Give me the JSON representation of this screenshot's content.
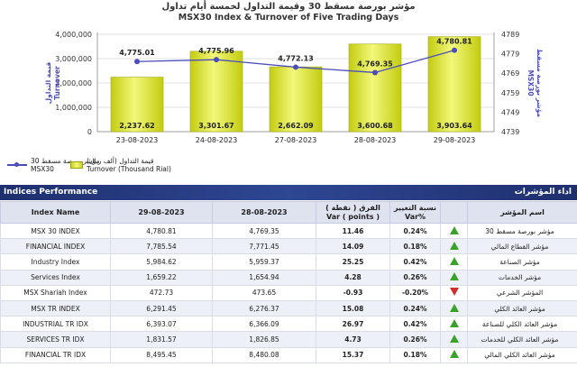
{
  "chart_data": {
    "type": "bar+line",
    "title_ar": "مؤشر بورصة مسقط 30 وقيمة التداول لخمسة أيام تداول",
    "title": "MSX30 Index & Turnover of Five Trading Days",
    "categories": [
      "23-08-2023",
      "24-08-2023",
      "27-08-2023",
      "28-08-2023",
      "29-08-2023"
    ],
    "series": [
      {
        "name": "Turnover (Thousand Rial)",
        "name_ar": "قيمة التداول (ألف ريال)",
        "type": "bar",
        "axis": "left",
        "values": [
          2237.62,
          3301.67,
          2662.09,
          3600.68,
          3903.64
        ],
        "labels": [
          "2,237.62",
          "3,301.67",
          "2,662.09",
          "3,600.68",
          "3,903.64"
        ],
        "plot_values": [
          2237620,
          3301670,
          2662090,
          3600680,
          3903640
        ]
      },
      {
        "name": "MSX30",
        "name_ar": "مؤشر بورصة مسقط 30",
        "type": "line",
        "axis": "right",
        "values": [
          4775.01,
          4775.96,
          4772.13,
          4769.35,
          4780.81
        ],
        "labels": [
          "4,775.01",
          "4,775.96",
          "4,772.13",
          "4,769.35",
          "4,780.81"
        ]
      }
    ],
    "left_axis": {
      "ticks": [
        "0",
        "1,000,000",
        "2,000,000",
        "3,000,000",
        "4,000,000"
      ],
      "tick_values": [
        0,
        1000000,
        2000000,
        3000000,
        4000000
      ],
      "range": [
        0,
        4000000
      ],
      "label_ar": "قيمة التداول",
      "label": "Turnover"
    },
    "right_axis": {
      "ticks": [
        "4739",
        "4749",
        "4759",
        "4769",
        "4779",
        "4789"
      ],
      "tick_values": [
        4739,
        4749,
        4759,
        4769,
        4779,
        4789
      ],
      "range": [
        4739,
        4789
      ],
      "label_ar": "مؤشر بورصة مسقط",
      "label": "MSX30"
    },
    "colors": {
      "bar": "#d9e032",
      "bar_edge": "#a3a815",
      "line": "#4b4dbd"
    }
  },
  "legend": {
    "line_label_ar": "مؤشر بورصة مسقط 30",
    "line_label": "MSX30",
    "bar_label_ar": "قيمة التداول (ألف ريال)",
    "bar_label": "Turnover (Thousand Rial)"
  },
  "section": {
    "title": "Indices Performance",
    "title_ar": "اداء المؤشرات"
  },
  "table": {
    "headers": {
      "name": "Index Name",
      "d1": "29-08-2023",
      "d2": "28-08-2023",
      "var_ar": "الفرق ( نقطة )",
      "var": "Var ( points )",
      "pct_ar": "نسبة التغيير",
      "pct": "Var%",
      "name_ar": "اسم المؤشر"
    },
    "rows": [
      {
        "name": "MSX 30 INDEX",
        "d1": "4,780.81",
        "d2": "4,769.35",
        "var": "11.46",
        "pct": "0.24%",
        "dir": "up",
        "name_ar": "مؤشر بورصة مسقط 30"
      },
      {
        "name": "FINANCIAL INDEX",
        "d1": "7,785.54",
        "d2": "7,771.45",
        "var": "14.09",
        "pct": "0.18%",
        "dir": "up",
        "name_ar": "مؤشر القطاع المالي"
      },
      {
        "name": "Industry Index",
        "d1": "5,984.62",
        "d2": "5,959.37",
        "var": "25.25",
        "pct": "0.42%",
        "dir": "up",
        "name_ar": "مؤشر الصناعة"
      },
      {
        "name": "Services Index",
        "d1": "1,659.22",
        "d2": "1,654.94",
        "var": "4.28",
        "pct": "0.26%",
        "dir": "up",
        "name_ar": "مؤشر الخدمات"
      },
      {
        "name": "MSX Shariah Index",
        "d1": "472.73",
        "d2": "473.65",
        "var": "-0.93",
        "pct": "-0.20%",
        "dir": "down",
        "name_ar": "المؤشر الشرعي"
      },
      {
        "name": "MSX TR INDEX",
        "d1": "6,291.45",
        "d2": "6,276.37",
        "var": "15.08",
        "pct": "0.24%",
        "dir": "up",
        "name_ar": "مؤشر العائد الكلي"
      },
      {
        "name": "INDUSTRIAL TR IDX",
        "d1": "6,393.07",
        "d2": "6,366.09",
        "var": "26.97",
        "pct": "0.42%",
        "dir": "up",
        "name_ar": "مؤشر العائد الكلي للصناعة"
      },
      {
        "name": "SERVICES TR IDX",
        "d1": "1,831.57",
        "d2": "1,826.85",
        "var": "4.73",
        "pct": "0.26%",
        "dir": "up",
        "name_ar": "مؤشر العائد الكلي للخدمات"
      },
      {
        "name": "FINANCIAL TR IDX",
        "d1": "8,495.45",
        "d2": "8,480.08",
        "var": "15.37",
        "pct": "0.18%",
        "dir": "up",
        "name_ar": "مؤشر العائد الكلي المالي"
      }
    ]
  }
}
